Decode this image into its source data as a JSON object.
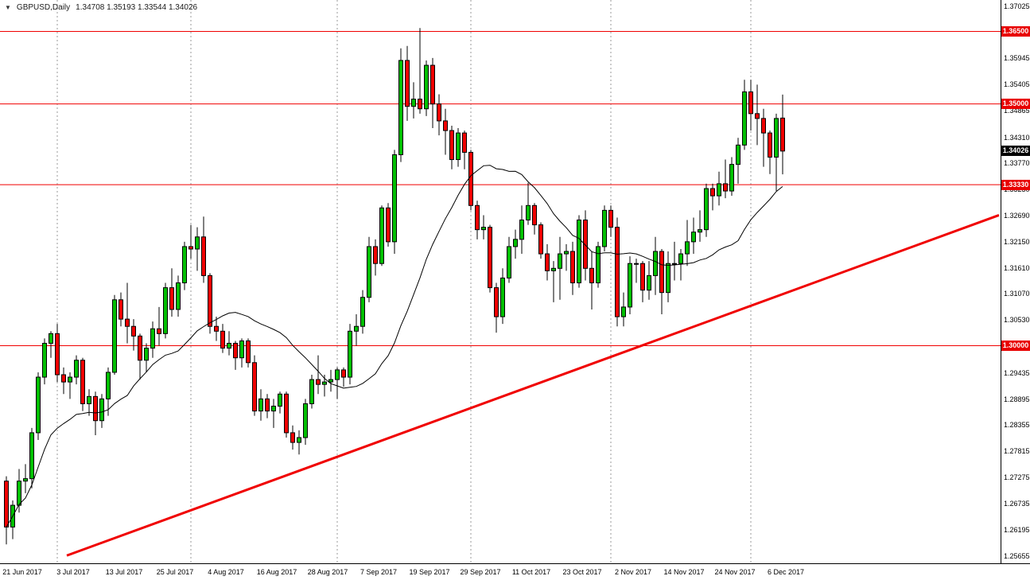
{
  "header": {
    "dropdown_icon": "▼",
    "symbol": "GBPUSD,Daily",
    "ohlc": "1.34708 1.35193 1.33544 1.34026"
  },
  "chart_data": {
    "type": "candlestick",
    "symbol": "GBPUSD",
    "timeframe": "Daily",
    "ylim": [
      1.255,
      1.3715
    ],
    "grid": "vertical-dashed-month-lines",
    "colors": {
      "up": "#00c000",
      "down": "#f00000",
      "wick": "#000000",
      "outline": "#000000",
      "grid": "#9a9a9a",
      "level_line": "#f00000",
      "axis_text": "#000000"
    },
    "price_axis_labels": [
      "1.37025",
      "1.35945",
      "1.35405",
      "1.34865",
      "1.34310",
      "1.33770",
      "1.33230",
      "1.32690",
      "1.32150",
      "1.31610",
      "1.31070",
      "1.30530",
      "1.29435",
      "1.28895",
      "1.28355",
      "1.27815",
      "1.27275",
      "1.26735",
      "1.26195",
      "1.25655"
    ],
    "price_badges": [
      {
        "label": "1.36500",
        "price": 1.365,
        "bg": "#e80000",
        "fg": "#ffffff"
      },
      {
        "label": "1.35000",
        "price": 1.35,
        "bg": "#e80000",
        "fg": "#ffffff"
      },
      {
        "label": "1.34026",
        "price": 1.34026,
        "bg": "#000000",
        "fg": "#ffffff"
      },
      {
        "label": "1.33330",
        "price": 1.3333,
        "bg": "#e80000",
        "fg": "#ffffff"
      },
      {
        "label": "1.30000",
        "price": 1.3,
        "bg": "#e80000",
        "fg": "#ffffff"
      }
    ],
    "horizontal_lines": [
      {
        "price": 1.365,
        "color": "#f00000",
        "width": 1
      },
      {
        "price": 1.35,
        "color": "#f00000",
        "width": 1
      },
      {
        "price": 1.3333,
        "color": "#f00000",
        "width": 1
      },
      {
        "price": 1.3,
        "color": "#f00000",
        "width": 1
      }
    ],
    "trendline": {
      "points": [
        [
          9.5,
          1.2566
        ],
        [
          156,
          1.327
        ]
      ],
      "color": "#f00000",
      "width": 3
    },
    "moving_average": {
      "type": "sma",
      "period": 20,
      "color": "#000000"
    },
    "month_gridline_indices": [
      8,
      29,
      52,
      73,
      95,
      117
    ],
    "time_axis_labels": [
      {
        "label": "21 Jun 2017",
        "index": 0
      },
      {
        "label": "3 Jul 2017",
        "index": 8
      },
      {
        "label": "13 Jul 2017",
        "index": 16
      },
      {
        "label": "25 Jul 2017",
        "index": 24
      },
      {
        "label": "4 Aug 2017",
        "index": 32
      },
      {
        "label": "16 Aug 2017",
        "index": 40
      },
      {
        "label": "28 Aug 2017",
        "index": 48
      },
      {
        "label": "7 Sep 2017",
        "index": 56
      },
      {
        "label": "19 Sep 2017",
        "index": 64
      },
      {
        "label": "29 Sep 2017",
        "index": 72
      },
      {
        "label": "11 Oct 2017",
        "index": 80
      },
      {
        "label": "23 Oct 2017",
        "index": 88
      },
      {
        "label": "2 Nov 2017",
        "index": 96
      },
      {
        "label": "14 Nov 2017",
        "index": 104
      },
      {
        "label": "24 Nov 2017",
        "index": 112
      },
      {
        "label": "6 Dec 2017",
        "index": 120
      }
    ],
    "columns": [
      "date",
      "open",
      "high",
      "low",
      "close"
    ],
    "candles": [
      [
        "2017-06-21",
        1.272,
        1.273,
        1.2589,
        1.2625
      ],
      [
        "2017-06-22",
        1.2625,
        1.268,
        1.26,
        1.267
      ],
      [
        "2017-06-23",
        1.267,
        1.2745,
        1.2655,
        1.272
      ],
      [
        "2017-06-26",
        1.272,
        1.2755,
        1.2695,
        1.2725
      ],
      [
        "2017-06-27",
        1.2725,
        1.283,
        1.2705,
        1.282
      ],
      [
        "2017-06-28",
        1.282,
        1.2945,
        1.2805,
        1.2935
      ],
      [
        "2017-06-29",
        1.2935,
        1.3015,
        1.292,
        1.3005
      ],
      [
        "2017-06-30",
        1.3005,
        1.303,
        1.2975,
        1.3025
      ],
      [
        "2017-07-03",
        1.3025,
        1.3045,
        1.2925,
        1.294
      ],
      [
        "2017-07-04",
        1.294,
        1.2955,
        1.29,
        1.2925
      ],
      [
        "2017-07-05",
        1.2925,
        1.2945,
        1.289,
        1.2935
      ],
      [
        "2017-07-06",
        1.2935,
        1.298,
        1.292,
        1.297
      ],
      [
        "2017-07-07",
        1.297,
        1.2975,
        1.2865,
        1.288
      ],
      [
        "2017-07-10",
        1.288,
        1.291,
        1.2855,
        1.2895
      ],
      [
        "2017-07-11",
        1.2895,
        1.2905,
        1.2815,
        1.2845
      ],
      [
        "2017-07-12",
        1.2845,
        1.29,
        1.283,
        1.289
      ],
      [
        "2017-07-13",
        1.289,
        1.2955,
        1.2855,
        1.2945
      ],
      [
        "2017-07-14",
        1.2945,
        1.3105,
        1.294,
        1.3095
      ],
      [
        "2017-07-17",
        1.3095,
        1.311,
        1.304,
        1.3055
      ],
      [
        "2017-07-18",
        1.3055,
        1.313,
        1.3005,
        1.304
      ],
      [
        "2017-07-19",
        1.304,
        1.3055,
        1.299,
        1.302
      ],
      [
        "2017-07-20",
        1.302,
        1.3025,
        1.293,
        1.297
      ],
      [
        "2017-07-21",
        1.297,
        1.3005,
        1.2945,
        1.2995
      ],
      [
        "2017-07-24",
        1.2995,
        1.305,
        1.2975,
        1.3035
      ],
      [
        "2017-07-25",
        1.3035,
        1.308,
        1.3,
        1.3025
      ],
      [
        "2017-07-26",
        1.3025,
        1.313,
        1.3015,
        1.312
      ],
      [
        "2017-07-27",
        1.312,
        1.316,
        1.306,
        1.3075
      ],
      [
        "2017-07-28",
        1.3075,
        1.3145,
        1.306,
        1.313
      ],
      [
        "2017-07-31",
        1.313,
        1.3215,
        1.3115,
        1.3205
      ],
      [
        "2017-08-01",
        1.3205,
        1.325,
        1.318,
        1.32
      ],
      [
        "2017-08-02",
        1.32,
        1.3245,
        1.3155,
        1.3225
      ],
      [
        "2017-08-03",
        1.3225,
        1.3267,
        1.313,
        1.3145
      ],
      [
        "2017-08-04",
        1.3145,
        1.315,
        1.3025,
        1.304
      ],
      [
        "2017-08-07",
        1.304,
        1.306,
        1.301,
        1.303
      ],
      [
        "2017-08-08",
        1.303,
        1.3045,
        1.2985,
        1.2995
      ],
      [
        "2017-08-09",
        1.2995,
        1.303,
        1.298,
        1.3005
      ],
      [
        "2017-08-10",
        1.3005,
        1.301,
        1.295,
        1.2975
      ],
      [
        "2017-08-11",
        1.2975,
        1.3015,
        1.2955,
        1.301
      ],
      [
        "2017-08-14",
        1.301,
        1.3015,
        1.2955,
        1.2965
      ],
      [
        "2017-08-15",
        1.2965,
        1.298,
        1.2855,
        1.2865
      ],
      [
        "2017-08-16",
        1.2865,
        1.291,
        1.2845,
        1.289
      ],
      [
        "2017-08-17",
        1.289,
        1.29,
        1.285,
        1.2865
      ],
      [
        "2017-08-18",
        1.2865,
        1.289,
        1.283,
        1.2875
      ],
      [
        "2017-08-21",
        1.2875,
        1.2905,
        1.286,
        1.29
      ],
      [
        "2017-08-22",
        1.29,
        1.2905,
        1.281,
        1.282
      ],
      [
        "2017-08-23",
        1.282,
        1.2835,
        1.2785,
        1.28
      ],
      [
        "2017-08-24",
        1.28,
        1.2825,
        1.2775,
        1.281
      ],
      [
        "2017-08-25",
        1.281,
        1.289,
        1.2795,
        1.288
      ],
      [
        "2017-08-28",
        1.288,
        1.294,
        1.287,
        1.293
      ],
      [
        "2017-08-29",
        1.293,
        1.298,
        1.29,
        1.292
      ],
      [
        "2017-08-30",
        1.292,
        1.294,
        1.2895,
        1.2925
      ],
      [
        "2017-08-31",
        1.2925,
        1.295,
        1.2905,
        1.293
      ],
      [
        "2017-09-01",
        1.293,
        1.2955,
        1.289,
        1.295
      ],
      [
        "2017-09-04",
        1.295,
        1.2955,
        1.2915,
        1.2935
      ],
      [
        "2017-09-05",
        1.2935,
        1.3045,
        1.292,
        1.303
      ],
      [
        "2017-09-06",
        1.303,
        1.3065,
        1.3,
        1.304
      ],
      [
        "2017-09-07",
        1.304,
        1.3115,
        1.3025,
        1.31
      ],
      [
        "2017-09-08",
        1.31,
        1.3225,
        1.309,
        1.3205
      ],
      [
        "2017-09-11",
        1.3205,
        1.322,
        1.3145,
        1.317
      ],
      [
        "2017-09-12",
        1.317,
        1.329,
        1.3165,
        1.3285
      ],
      [
        "2017-09-13",
        1.3285,
        1.3295,
        1.3205,
        1.3215
      ],
      [
        "2017-09-14",
        1.3215,
        1.3405,
        1.319,
        1.3395
      ],
      [
        "2017-09-15",
        1.3395,
        1.3615,
        1.338,
        1.359
      ],
      [
        "2017-09-18",
        1.359,
        1.362,
        1.3465,
        1.3495
      ],
      [
        "2017-09-19",
        1.3495,
        1.3545,
        1.347,
        1.351
      ],
      [
        "2017-09-20",
        1.351,
        1.3657,
        1.348,
        1.349
      ],
      [
        "2017-09-21",
        1.349,
        1.359,
        1.3475,
        1.358
      ],
      [
        "2017-09-22",
        1.358,
        1.3595,
        1.345,
        1.35
      ],
      [
        "2017-09-25",
        1.35,
        1.352,
        1.3435,
        1.3465
      ],
      [
        "2017-09-26",
        1.3465,
        1.349,
        1.3395,
        1.3445
      ],
      [
        "2017-09-27",
        1.3445,
        1.3455,
        1.3365,
        1.3385
      ],
      [
        "2017-09-28",
        1.3385,
        1.345,
        1.337,
        1.344
      ],
      [
        "2017-09-29",
        1.344,
        1.3445,
        1.3365,
        1.34
      ],
      [
        "2017-10-02",
        1.34,
        1.3405,
        1.328,
        1.329
      ],
      [
        "2017-10-03",
        1.329,
        1.33,
        1.322,
        1.324
      ],
      [
        "2017-10-04",
        1.324,
        1.327,
        1.322,
        1.3245
      ],
      [
        "2017-10-05",
        1.3245,
        1.325,
        1.311,
        1.312
      ],
      [
        "2017-10-06",
        1.312,
        1.313,
        1.3027,
        1.306
      ],
      [
        "2017-10-09",
        1.306,
        1.316,
        1.3045,
        1.314
      ],
      [
        "2017-10-10",
        1.314,
        1.3225,
        1.313,
        1.3205
      ],
      [
        "2017-10-11",
        1.3205,
        1.324,
        1.318,
        1.322
      ],
      [
        "2017-10-12",
        1.322,
        1.329,
        1.319,
        1.326
      ],
      [
        "2017-10-13",
        1.326,
        1.3337,
        1.325,
        1.329
      ],
      [
        "2017-10-16",
        1.329,
        1.3295,
        1.323,
        1.325
      ],
      [
        "2017-10-17",
        1.325,
        1.3255,
        1.318,
        1.319
      ],
      [
        "2017-10-18",
        1.319,
        1.321,
        1.3135,
        1.3155
      ],
      [
        "2017-10-19",
        1.3155,
        1.3175,
        1.309,
        1.316
      ],
      [
        "2017-10-20",
        1.316,
        1.3225,
        1.3095,
        1.319
      ],
      [
        "2017-10-23",
        1.319,
        1.321,
        1.3155,
        1.3195
      ],
      [
        "2017-10-24",
        1.3195,
        1.3215,
        1.3105,
        1.313
      ],
      [
        "2017-10-25",
        1.313,
        1.327,
        1.312,
        1.326
      ],
      [
        "2017-10-26",
        1.326,
        1.328,
        1.3135,
        1.316
      ],
      [
        "2017-10-27",
        1.316,
        1.3195,
        1.3075,
        1.313
      ],
      [
        "2017-10-30",
        1.313,
        1.3215,
        1.312,
        1.3205
      ],
      [
        "2017-10-31",
        1.3205,
        1.329,
        1.3195,
        1.328
      ],
      [
        "2017-11-01",
        1.328,
        1.329,
        1.3225,
        1.3245
      ],
      [
        "2017-11-02",
        1.3245,
        1.3265,
        1.304,
        1.306
      ],
      [
        "2017-11-03",
        1.306,
        1.311,
        1.304,
        1.308
      ],
      [
        "2017-11-06",
        1.308,
        1.3185,
        1.3065,
        1.317
      ],
      [
        "2017-11-07",
        1.317,
        1.318,
        1.313,
        1.317
      ],
      [
        "2017-11-08",
        1.317,
        1.3175,
        1.309,
        1.3115
      ],
      [
        "2017-11-09",
        1.3115,
        1.3175,
        1.3095,
        1.3145
      ],
      [
        "2017-11-10",
        1.3145,
        1.3225,
        1.3105,
        1.3195
      ],
      [
        "2017-11-13",
        1.3195,
        1.32,
        1.3065,
        1.311
      ],
      [
        "2017-11-14",
        1.311,
        1.3195,
        1.309,
        1.317
      ],
      [
        "2017-11-15",
        1.317,
        1.3215,
        1.3135,
        1.317
      ],
      [
        "2017-11-16",
        1.317,
        1.32,
        1.3135,
        1.319
      ],
      [
        "2017-11-17",
        1.319,
        1.326,
        1.3165,
        1.3215
      ],
      [
        "2017-11-20",
        1.3215,
        1.3265,
        1.319,
        1.3235
      ],
      [
        "2017-11-21",
        1.3235,
        1.328,
        1.3215,
        1.324
      ],
      [
        "2017-11-22",
        1.324,
        1.3335,
        1.3225,
        1.3325
      ],
      [
        "2017-11-23",
        1.3325,
        1.3335,
        1.328,
        1.331
      ],
      [
        "2017-11-24",
        1.331,
        1.336,
        1.329,
        1.3335
      ],
      [
        "2017-11-27",
        1.3335,
        1.3385,
        1.3305,
        1.332
      ],
      [
        "2017-11-28",
        1.332,
        1.339,
        1.331,
        1.3375
      ],
      [
        "2017-11-29",
        1.3375,
        1.343,
        1.3335,
        1.3415
      ],
      [
        "2017-11-30",
        1.3415,
        1.355,
        1.3405,
        1.3525
      ],
      [
        "2017-12-01",
        1.3525,
        1.355,
        1.3445,
        1.348
      ],
      [
        "2017-12-04",
        1.348,
        1.354,
        1.3415,
        1.347
      ],
      [
        "2017-12-05",
        1.347,
        1.349,
        1.337,
        1.344
      ],
      [
        "2017-12-06",
        1.344,
        1.3445,
        1.3355,
        1.339
      ],
      [
        "2017-12-07",
        1.339,
        1.348,
        1.332,
        1.347
      ],
      [
        "2017-12-08",
        1.34708,
        1.35193,
        1.33544,
        1.34026
      ]
    ]
  }
}
